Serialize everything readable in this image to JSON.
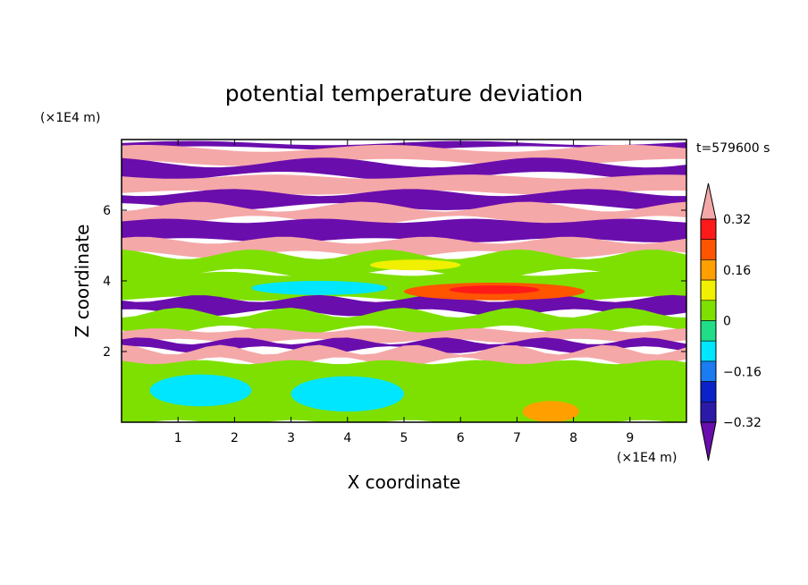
{
  "chart_data": {
    "type": "heatmap",
    "title": "potential temperature deviation",
    "xlabel": "X coordinate",
    "ylabel": "Z coordinate",
    "x_unit": "(×1E4 m)",
    "y_unit": "(×1E4 m)",
    "time_label": "t=579600 s",
    "xlim": [
      0,
      10
    ],
    "ylim": [
      0,
      8
    ],
    "x_ticks": [
      "1",
      "2",
      "3",
      "4",
      "5",
      "6",
      "7",
      "8",
      "9"
    ],
    "y_ticks": [
      "2",
      "4",
      "6"
    ],
    "colorbar": {
      "levels": [
        "0.32",
        "0.16",
        "0",
        "−0.16",
        "−0.32"
      ],
      "label_values": [
        0.32,
        0.16,
        0,
        -0.16,
        -0.32
      ],
      "bins": [
        -0.4,
        -0.32,
        -0.24,
        -0.16,
        -0.08,
        0,
        0.08,
        0.16,
        0.24,
        0.32,
        0.4
      ],
      "colors": [
        "#6a0dad",
        "#2b1aa8",
        "#0a22c8",
        "#1a7cf0",
        "#00e6ff",
        "#22dd88",
        "#7ee000",
        "#f0f000",
        "#ffa000",
        "#ff5500",
        "#ff1a1a",
        "#f5a8a8"
      ]
    },
    "bands": [
      {
        "z": [
          7.75,
          7.9
        ],
        "value": -0.5
      },
      {
        "z": [
          7.35,
          7.75
        ],
        "value": 0.5
      },
      {
        "z": [
          6.95,
          7.35
        ],
        "value": -0.5
      },
      {
        "z": [
          6.5,
          6.95
        ],
        "value": 0.5
      },
      {
        "z": [
          6.1,
          6.5
        ],
        "value": -0.5
      },
      {
        "z": [
          5.7,
          6.1
        ],
        "value": 0.5
      },
      {
        "z": [
          5.15,
          5.7
        ],
        "value": -0.5
      },
      {
        "z": [
          4.75,
          5.15
        ],
        "value": 0.5
      },
      {
        "z": [
          4.2,
          4.75
        ],
        "value": 0.05
      },
      {
        "z": [
          3.5,
          4.2
        ],
        "value": 0.0
      },
      {
        "z": [
          3.1,
          3.5
        ],
        "value": -0.45
      },
      {
        "z": [
          2.6,
          3.1
        ],
        "value": 0.05
      },
      {
        "z": [
          2.3,
          2.6
        ],
        "value": 0.5
      },
      {
        "z": [
          2.05,
          2.3
        ],
        "value": -0.5
      },
      {
        "z": [
          1.7,
          2.05
        ],
        "value": 0.5
      },
      {
        "z": [
          0.0,
          1.7
        ],
        "value": 0.02
      }
    ],
    "blobs": [
      {
        "x": 6.6,
        "z": 3.7,
        "rx": 1.6,
        "rz": 0.25,
        "value": 0.3
      },
      {
        "x": 6.6,
        "z": 3.75,
        "rx": 0.8,
        "rz": 0.12,
        "value": 0.36
      },
      {
        "x": 1.4,
        "z": 0.9,
        "rx": 0.9,
        "rz": 0.45,
        "value": -0.1
      },
      {
        "x": 4.0,
        "z": 0.8,
        "rx": 1.0,
        "rz": 0.5,
        "value": -0.12
      },
      {
        "x": 4.0,
        "z": 0.8,
        "rx": 0.5,
        "rz": 0.3,
        "value": -0.15
      },
      {
        "x": 6.9,
        "z": 0.7,
        "rx": 1.4,
        "rz": 0.9,
        "value": 0.04
      },
      {
        "x": 2.7,
        "z": 1.2,
        "rx": 0.4,
        "rz": 0.5,
        "value": 0.05
      },
      {
        "x": 7.6,
        "z": 0.3,
        "rx": 0.5,
        "rz": 0.3,
        "value": 0.2
      },
      {
        "x": 3.5,
        "z": 3.8,
        "rx": 1.2,
        "rz": 0.2,
        "value": -0.1
      },
      {
        "x": 8.8,
        "z": 1.0,
        "rx": 0.7,
        "rz": 0.6,
        "value": 0.0
      },
      {
        "x": 5.2,
        "z": 4.45,
        "rx": 0.8,
        "rz": 0.15,
        "value": 0.1
      }
    ]
  }
}
